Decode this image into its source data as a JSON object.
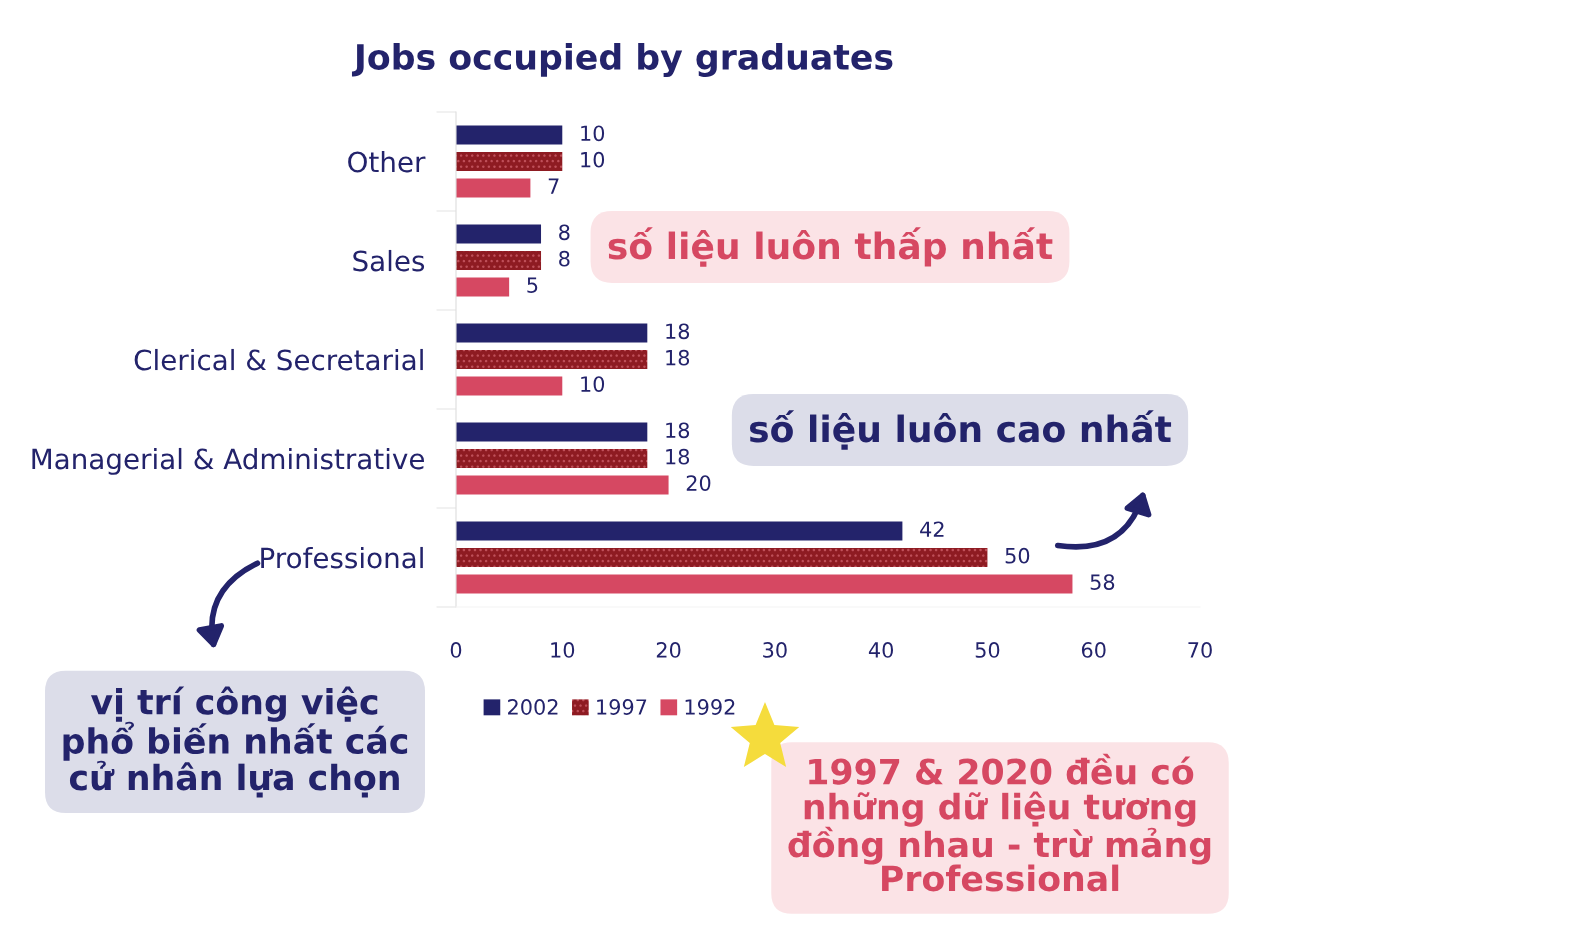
{
  "chart_data": {
    "type": "bar",
    "orientation": "horizontal",
    "title": "Jobs occupied by graduates",
    "categories": [
      "Other",
      "Sales",
      "Clerical & Secretarial",
      "Managerial & Administrative",
      "Professional"
    ],
    "series": [
      {
        "name": "2002",
        "color": "#23236b",
        "values": [
          10,
          8,
          18,
          18,
          42
        ]
      },
      {
        "name": "1997",
        "color": "#8e1b22",
        "values": [
          10,
          8,
          18,
          18,
          50
        ]
      },
      {
        "name": "1992",
        "color": "#d64862",
        "values": [
          7,
          5,
          10,
          20,
          58
        ]
      }
    ],
    "xlim": [
      0,
      70
    ],
    "xticks": [
      0,
      10,
      20,
      30,
      40,
      50,
      60,
      70
    ],
    "data_labels": true,
    "grid": false,
    "legend": "bottom",
    "annotations": [
      "số liệu luôn thấp nhất",
      "số liệu luôn cao nhất",
      "vị trí công việc\nphổ biến nhất các\ncử nhân lựa chọn",
      "1997 & 2020 đều có\nnhững dữ liệu tương\nđồng nhau - trừ mảng\nProfessional"
    ]
  }
}
